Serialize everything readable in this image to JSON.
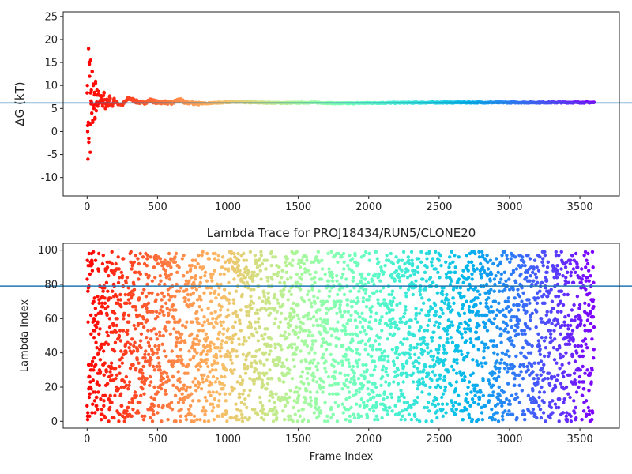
{
  "chart_data": [
    {
      "type": "scatter",
      "title": "",
      "xlabel": "",
      "ylabel": "ΔG (kT)",
      "xlim": [
        -170,
        3780
      ],
      "ylim": [
        -14,
        26
      ],
      "xticks": [
        0,
        500,
        1000,
        1500,
        2000,
        2500,
        3000,
        3500
      ],
      "yticks": [
        -10,
        -5,
        0,
        5,
        10,
        15,
        20,
        25
      ],
      "grid": false,
      "colormap": "rainbow (red at start → violet at end)",
      "hline": {
        "y": 6.2,
        "color": "#1f77b4"
      },
      "series": [
        {
          "x": [
            2,
            4,
            6,
            8,
            10,
            12,
            15,
            18,
            20,
            22,
            25,
            28,
            30,
            33,
            36,
            40,
            44,
            48,
            52,
            56,
            60,
            65,
            70,
            75,
            80,
            90,
            100,
            110,
            120,
            130,
            140,
            150,
            160,
            170,
            180,
            190,
            200,
            220,
            250,
            280,
            300,
            350,
            400,
            450,
            500,
            550,
            600,
            650,
            700,
            800,
            900,
            1000,
            1200,
            1400,
            1600,
            1800,
            2000,
            2500,
            3000,
            3500,
            3600
          ],
          "y": [
            10.0,
            0.0,
            -6.0,
            2.0,
            18.0,
            -1.5,
            15.0,
            12.0,
            1.5,
            -4.5,
            15.5,
            6.0,
            9.0,
            4.0,
            13.0,
            2.0,
            10.0,
            5.0,
            8.5,
            3.0,
            10.5,
            4.5,
            9.0,
            5.5,
            8.0,
            6.5,
            7.5,
            5.5,
            8.5,
            5.0,
            7.0,
            5.5,
            7.5,
            6.0,
            5.5,
            7.0,
            6.5,
            6.0,
            5.8,
            6.8,
            7.2,
            6.5,
            6.2,
            6.8,
            6.3,
            6.4,
            6.1,
            6.9,
            6.3,
            6.1,
            6.2,
            6.4,
            6.3,
            6.2,
            6.3,
            6.1,
            6.2,
            6.3,
            6.3,
            6.3,
            6.3
          ]
        }
      ]
    },
    {
      "type": "scatter",
      "title": "Lambda Trace for PROJ18434/RUN5/CLONE20",
      "xlabel": "Frame Index",
      "ylabel": "Lambda Index",
      "xlim": [
        -170,
        3780
      ],
      "ylim": [
        -4,
        104
      ],
      "xticks": [
        0,
        500,
        1000,
        1500,
        2000,
        2500,
        3000,
        3500
      ],
      "yticks": [
        0,
        20,
        40,
        60,
        80,
        100
      ],
      "grid": false,
      "colormap": "rainbow (red at start → violet at end)",
      "hline": {
        "y": 79,
        "color": "#1f77b4"
      },
      "description_of_distribution": "about 3600 frames, lambda indices scattered uniformly across 0–99",
      "series": [
        {
          "x_range": [
            0,
            3600
          ],
          "y_range": [
            0,
            99
          ],
          "n_points": 3600
        }
      ]
    }
  ]
}
